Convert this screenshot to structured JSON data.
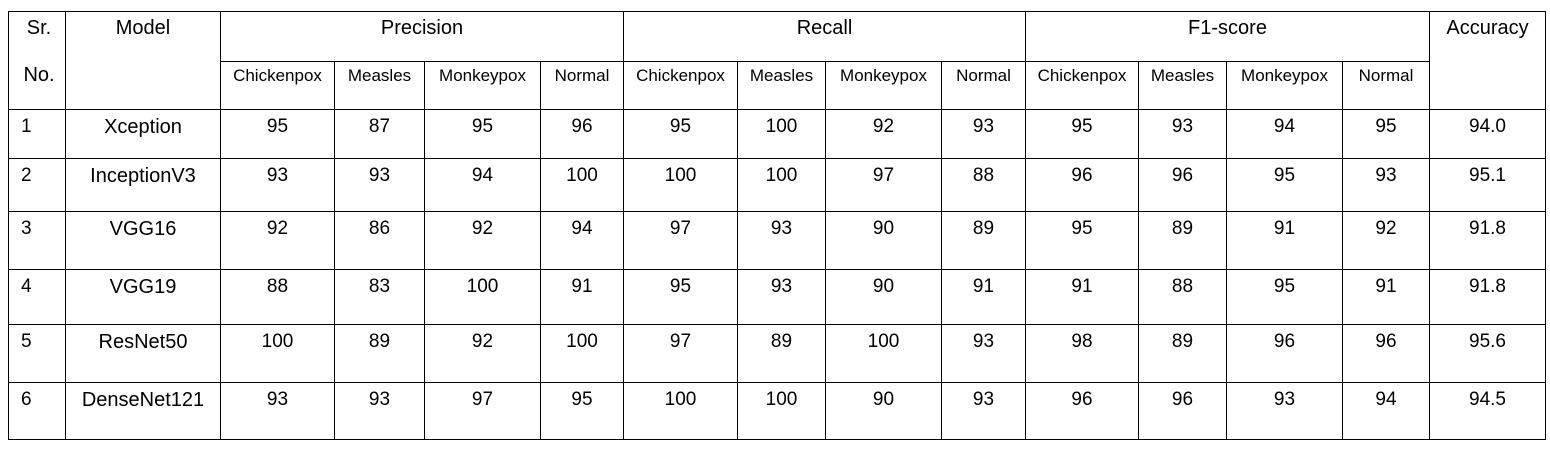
{
  "header": {
    "sr_line1": "Sr.",
    "sr_line2": "No.",
    "model": "Model",
    "groups": [
      "Precision",
      "Recall",
      "F1-score"
    ],
    "accuracy": "Accuracy",
    "classes": [
      "Chickenpox",
      "Measles",
      "Monkeypox",
      "Normal"
    ]
  },
  "rows": [
    {
      "sr": "1",
      "model": "Xception",
      "precision": [
        "95",
        "87",
        "95",
        "96"
      ],
      "recall": [
        "95",
        "100",
        "92",
        "93"
      ],
      "f1": [
        "95",
        "93",
        "94",
        "95"
      ],
      "accuracy": "94.0"
    },
    {
      "sr": "2",
      "model": "InceptionV3",
      "precision": [
        "93",
        "93",
        "94",
        "100"
      ],
      "recall": [
        "100",
        "100",
        "97",
        "88"
      ],
      "f1": [
        "96",
        "96",
        "95",
        "93"
      ],
      "accuracy": "95.1"
    },
    {
      "sr": "3",
      "model": "VGG16",
      "precision": [
        "92",
        "86",
        "92",
        "94"
      ],
      "recall": [
        "97",
        "93",
        "90",
        "89"
      ],
      "f1": [
        "95",
        "89",
        "91",
        "92"
      ],
      "accuracy": "91.8"
    },
    {
      "sr": "4",
      "model": "VGG19",
      "precision": [
        "88",
        "83",
        "100",
        "91"
      ],
      "recall": [
        "95",
        "93",
        "90",
        "91"
      ],
      "f1": [
        "91",
        "88",
        "95",
        "91"
      ],
      "accuracy": "91.8"
    },
    {
      "sr": "5",
      "model": "ResNet50",
      "precision": [
        "100",
        "89",
        "92",
        "100"
      ],
      "recall": [
        "97",
        "89",
        "100",
        "93"
      ],
      "f1": [
        "98",
        "89",
        "96",
        "96"
      ],
      "accuracy": "95.6"
    },
    {
      "sr": "6",
      "model": "DenseNet121",
      "precision": [
        "93",
        "93",
        "97",
        "95"
      ],
      "recall": [
        "100",
        "100",
        "90",
        "93"
      ],
      "f1": [
        "96",
        "96",
        "93",
        "94"
      ],
      "accuracy": "94.5"
    }
  ]
}
